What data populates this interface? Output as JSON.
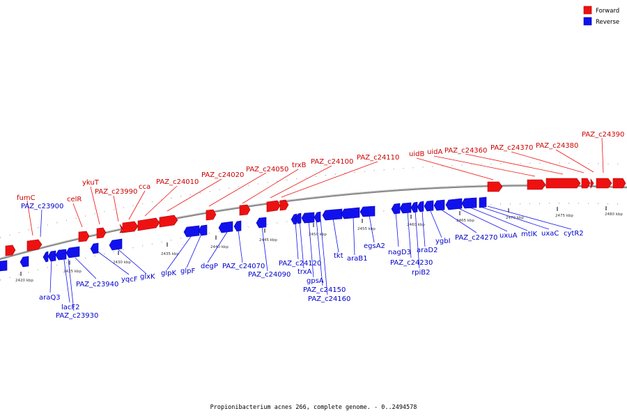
{
  "legend": {
    "forward_label": "Forward",
    "reverse_label": "Reverse",
    "forward_color": "#ee1111",
    "reverse_color": "#1111ee"
  },
  "caption": "Propionibacterium acnes 266, complete genome. - 0..2494578",
  "ticks": [
    {
      "label": "2420 kbp"
    },
    {
      "label": "2425 kbp"
    },
    {
      "label": "2430 kbp"
    },
    {
      "label": "2435 kbp"
    },
    {
      "label": "2440 kbp"
    },
    {
      "label": "2445 kbp"
    },
    {
      "label": "2450 kbp"
    },
    {
      "label": "2455 kbp"
    },
    {
      "label": "2460 kbp"
    },
    {
      "label": "2465 kbp"
    },
    {
      "label": "2470 kbp"
    },
    {
      "label": "2475 kbp"
    },
    {
      "label": "2480 kbp"
    }
  ],
  "forward_labels": [
    "fumC",
    "celR",
    "ykuT",
    "PAZ_c23990",
    "cca",
    "PAZ_c24010",
    "PAZ_c24020",
    "PAZ_c24050",
    "trxB",
    "PAZ_c24100",
    "PAZ_c24110",
    "uidB",
    "uidA",
    "PAZ_c24360",
    "PAZ_c24370",
    "PAZ_c24380",
    "PAZ_c24390"
  ],
  "reverse_labels": [
    "PAZ_c23900",
    "araQ3",
    "lacF2",
    "PAZ_c23930",
    "PAZ_c23940",
    "yqcF",
    "glxK",
    "glpK",
    "glpF",
    "degP",
    "PAZ_c24070",
    "PAZ_c24090",
    "PAZ_c24120",
    "trxA",
    "gpsA",
    "PAZ_c24150",
    "PAZ_c24160",
    "tkt",
    "araB1",
    "egsA2",
    "nagD3",
    "PAZ_c24230",
    "araD2",
    "rpiB2",
    "ygbI",
    "PAZ_c24270",
    "uxuA",
    "mtlK",
    "uxaC",
    "cytR2"
  ]
}
